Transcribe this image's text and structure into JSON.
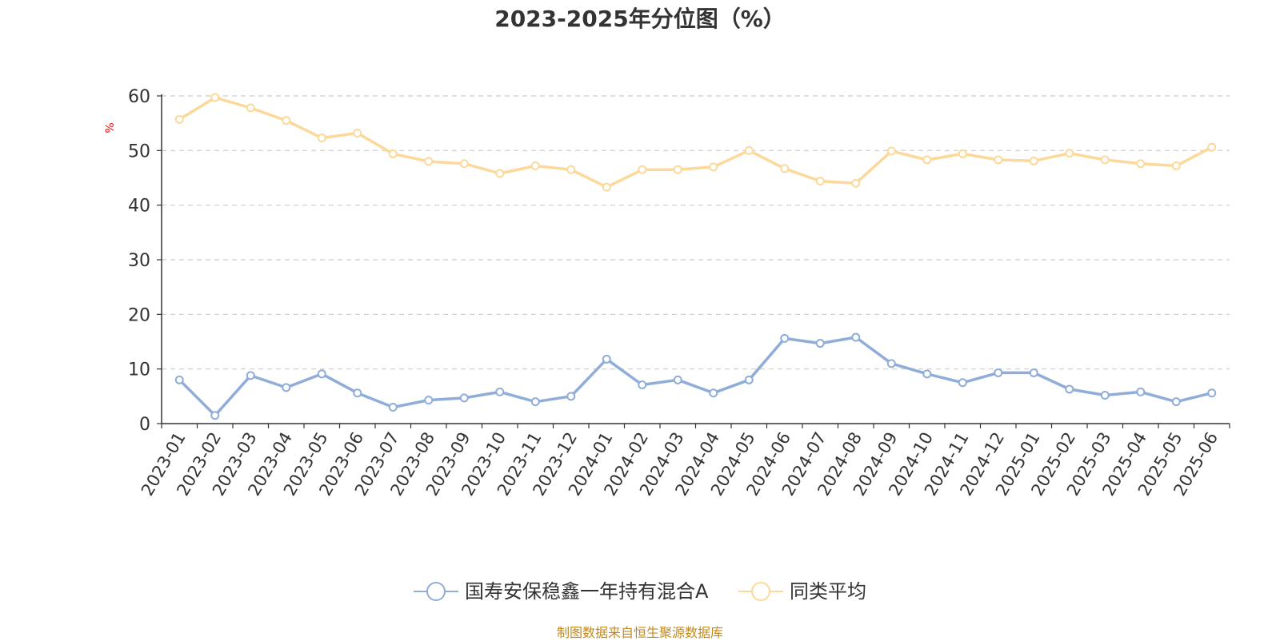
{
  "chart_data": {
    "type": "line",
    "title": "2023-2025年分位图（%）",
    "ylabel": "%",
    "xlabel": "",
    "ylim": [
      0,
      60
    ],
    "yticks": [
      0,
      10,
      20,
      30,
      40,
      50,
      60
    ],
    "grid": "horizontal dashed",
    "legend_position": "bottom",
    "categories": [
      "2023-01",
      "2023-02",
      "2023-03",
      "2023-04",
      "2023-05",
      "2023-06",
      "2023-07",
      "2023-08",
      "2023-09",
      "2023-10",
      "2023-11",
      "2023-12",
      "2024-01",
      "2024-02",
      "2024-03",
      "2024-04",
      "2024-05",
      "2024-06",
      "2024-07",
      "2024-08",
      "2024-09",
      "2024-10",
      "2024-11",
      "2024-12",
      "2025-01",
      "2025-02",
      "2025-03",
      "2025-04",
      "2025-05",
      "2025-06"
    ],
    "series": [
      {
        "name": "国寿安保稳鑫一年持有混合A",
        "color": "#8fadd8",
        "values": [
          8.0,
          1.5,
          8.8,
          6.6,
          9.1,
          5.6,
          3.0,
          4.3,
          4.7,
          5.8,
          4.0,
          5.0,
          11.8,
          7.1,
          8.0,
          5.6,
          8.0,
          15.6,
          14.7,
          15.8,
          11.0,
          9.1,
          7.5,
          9.3,
          9.3,
          6.3,
          5.2,
          5.8,
          4.0,
          5.6
        ]
      },
      {
        "name": "同类平均",
        "color": "#fcd99a",
        "values": [
          55.7,
          59.7,
          57.8,
          55.5,
          52.3,
          53.2,
          49.4,
          48.0,
          47.6,
          45.8,
          47.2,
          46.5,
          43.3,
          46.5,
          46.5,
          47.0,
          50.0,
          46.7,
          44.4,
          44.0,
          49.9,
          48.3,
          49.4,
          48.3,
          48.1,
          49.5,
          48.3,
          47.6,
          47.2,
          50.6
        ]
      }
    ]
  },
  "source_text": "制图数据来自恒生聚源数据库",
  "colors": {
    "axis": "#333333",
    "grid": "#cccccc",
    "ylabel": "#ff0000",
    "source": "#c28a1e"
  }
}
